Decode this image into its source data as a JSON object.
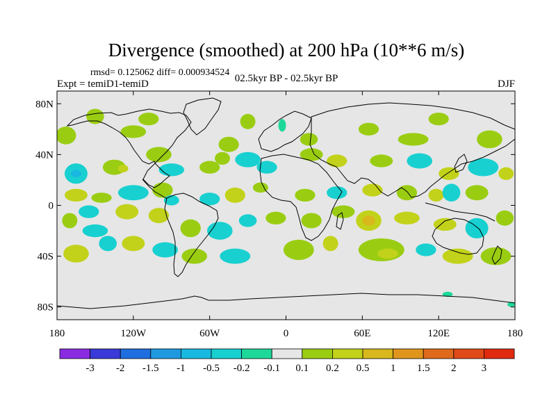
{
  "chart_data": {
    "type": "heatmap",
    "title": "Divergence (smoothed) at 200 hPa (10**6 m/s)",
    "stats_text": "rmsd= 0.125062 diff= 0.000934524",
    "left_label": "Expt = temiD1-temiD",
    "center_label": "02.5kyr BP - 02.5kyr BP",
    "right_label": "DJF",
    "x_axis": {
      "range": [
        -180,
        180
      ],
      "ticks": [
        {
          "value": -180,
          "label": "180"
        },
        {
          "value": -120,
          "label": "120W"
        },
        {
          "value": -60,
          "label": "60W"
        },
        {
          "value": 0,
          "label": "0"
        },
        {
          "value": 60,
          "label": "60E"
        },
        {
          "value": 120,
          "label": "120E"
        },
        {
          "value": 180,
          "label": "180"
        }
      ]
    },
    "y_axis": {
      "range": [
        -90,
        90
      ],
      "ticks": [
        {
          "value": 80,
          "label": "80N"
        },
        {
          "value": 40,
          "label": "40N"
        },
        {
          "value": 0,
          "label": "0"
        },
        {
          "value": -40,
          "label": "40S"
        },
        {
          "value": -80,
          "label": "80S"
        }
      ]
    },
    "colorbar": {
      "labels": [
        "-3",
        "-2",
        "-1.5",
        "-1",
        "-0.5",
        "-0.2",
        "-0.1",
        "0.1",
        "0.2",
        "0.5",
        "1",
        "1.5",
        "2",
        "3"
      ],
      "colors": [
        "#8a2be2",
        "#3a3ad8",
        "#1e6ee0",
        "#1f9ae0",
        "#19b8e0",
        "#18d0d0",
        "#1ed89a",
        "#e6e6e6",
        "#9acd12",
        "#c2d21a",
        "#d8b81c",
        "#e0951c",
        "#e06a1c",
        "#e04a18",
        "#e02a10"
      ]
    },
    "regions": [
      {
        "lon": -173,
        "lat": 55,
        "rx": 8,
        "ry": 7,
        "level": "0.1"
      },
      {
        "lon": -150,
        "lat": 70,
        "rx": 7,
        "ry": 6,
        "level": "0.1"
      },
      {
        "lon": -120,
        "lat": 58,
        "rx": 10,
        "ry": 5,
        "level": "0.1"
      },
      {
        "lon": -108,
        "lat": 68,
        "rx": 8,
        "ry": 5,
        "level": "0.1"
      },
      {
        "lon": -45,
        "lat": 48,
        "rx": 8,
        "ry": 6,
        "level": "0.1"
      },
      {
        "lon": -30,
        "lat": 66,
        "rx": 6,
        "ry": 6,
        "level": "0.1"
      },
      {
        "lon": -3,
        "lat": 63,
        "rx": 3,
        "ry": 5,
        "level": "-0.1"
      },
      {
        "lon": 18,
        "lat": 52,
        "rx": 7,
        "ry": 5,
        "level": "0.1"
      },
      {
        "lon": 65,
        "lat": 60,
        "rx": 8,
        "ry": 5,
        "level": "0.1"
      },
      {
        "lon": 100,
        "lat": 52,
        "rx": 12,
        "ry": 5,
        "level": "0.1"
      },
      {
        "lon": 120,
        "lat": 68,
        "rx": 8,
        "ry": 5,
        "level": "0.1"
      },
      {
        "lon": 160,
        "lat": 52,
        "rx": 10,
        "ry": 7,
        "level": "0.1"
      },
      {
        "lon": -165,
        "lat": 25,
        "rx": 9,
        "ry": 8,
        "level": "-0.2"
      },
      {
        "lon": -165,
        "lat": 25,
        "rx": 4,
        "ry": 3,
        "level": "-0.5"
      },
      {
        "lon": -135,
        "lat": 30,
        "rx": 9,
        "ry": 6,
        "level": "0.1"
      },
      {
        "lon": -128,
        "lat": 29,
        "rx": 4,
        "ry": 3,
        "level": "0.2"
      },
      {
        "lon": -100,
        "lat": 40,
        "rx": 10,
        "ry": 6,
        "level": "0.1"
      },
      {
        "lon": -90,
        "lat": 28,
        "rx": 10,
        "ry": 5,
        "level": "-0.2"
      },
      {
        "lon": -60,
        "lat": 30,
        "rx": 8,
        "ry": 5,
        "level": "0.1"
      },
      {
        "lon": -50,
        "lat": 37,
        "rx": 6,
        "ry": 5,
        "level": "0.1"
      },
      {
        "lon": -30,
        "lat": 36,
        "rx": 10,
        "ry": 6,
        "level": "-0.2"
      },
      {
        "lon": -15,
        "lat": 30,
        "rx": 8,
        "ry": 5,
        "level": "-0.2"
      },
      {
        "lon": 20,
        "lat": 40,
        "rx": 9,
        "ry": 5,
        "level": "0.1"
      },
      {
        "lon": 40,
        "lat": 35,
        "rx": 8,
        "ry": 5,
        "level": "0.2"
      },
      {
        "lon": 75,
        "lat": 35,
        "rx": 9,
        "ry": 5,
        "level": "0.1"
      },
      {
        "lon": 105,
        "lat": 35,
        "rx": 10,
        "ry": 6,
        "level": "-0.2"
      },
      {
        "lon": 128,
        "lat": 25,
        "rx": 8,
        "ry": 5,
        "level": "0.2"
      },
      {
        "lon": 155,
        "lat": 30,
        "rx": 12,
        "ry": 7,
        "level": "-0.2"
      },
      {
        "lon": 173,
        "lat": 25,
        "rx": 6,
        "ry": 5,
        "level": "0.2"
      },
      {
        "lon": -165,
        "lat": 8,
        "rx": 9,
        "ry": 5,
        "level": "0.2"
      },
      {
        "lon": -145,
        "lat": 6,
        "rx": 8,
        "ry": 4,
        "level": "0.1"
      },
      {
        "lon": -120,
        "lat": 10,
        "rx": 12,
        "ry": 6,
        "level": "-0.2"
      },
      {
        "lon": -97,
        "lat": 12,
        "rx": 8,
        "ry": 6,
        "level": "0.1"
      },
      {
        "lon": -90,
        "lat": 4,
        "rx": 6,
        "ry": 4,
        "level": "-0.2"
      },
      {
        "lon": -60,
        "lat": 5,
        "rx": 8,
        "ry": 5,
        "level": "-0.2"
      },
      {
        "lon": -40,
        "lat": 8,
        "rx": 8,
        "ry": 6,
        "level": "0.2"
      },
      {
        "lon": -20,
        "lat": 14,
        "rx": 6,
        "ry": 4,
        "level": "0.1"
      },
      {
        "lon": 15,
        "lat": 8,
        "rx": 8,
        "ry": 5,
        "level": "0.1"
      },
      {
        "lon": 40,
        "lat": 10,
        "rx": 8,
        "ry": 5,
        "level": "-0.2"
      },
      {
        "lon": 68,
        "lat": 12,
        "rx": 8,
        "ry": 5,
        "level": "0.2"
      },
      {
        "lon": 95,
        "lat": 10,
        "rx": 8,
        "ry": 6,
        "level": "0.1"
      },
      {
        "lon": 118,
        "lat": 8,
        "rx": 6,
        "ry": 5,
        "level": "0.2"
      },
      {
        "lon": 130,
        "lat": 10,
        "rx": 7,
        "ry": 7,
        "level": "-0.2"
      },
      {
        "lon": 150,
        "lat": 10,
        "rx": 9,
        "ry": 6,
        "level": "0.1"
      },
      {
        "lon": -170,
        "lat": -12,
        "rx": 6,
        "ry": 6,
        "level": "0.1"
      },
      {
        "lon": -155,
        "lat": -5,
        "rx": 8,
        "ry": 5,
        "level": "-0.2"
      },
      {
        "lon": -150,
        "lat": -20,
        "rx": 10,
        "ry": 5,
        "level": "-0.2"
      },
      {
        "lon": -125,
        "lat": -5,
        "rx": 9,
        "ry": 6,
        "level": "0.2"
      },
      {
        "lon": -100,
        "lat": -8,
        "rx": 8,
        "ry": 6,
        "level": "0.2"
      },
      {
        "lon": -75,
        "lat": -18,
        "rx": 8,
        "ry": 7,
        "level": "0.1"
      },
      {
        "lon": -52,
        "lat": -20,
        "rx": 10,
        "ry": 7,
        "level": "-0.2"
      },
      {
        "lon": -30,
        "lat": -12,
        "rx": 7,
        "ry": 5,
        "level": "-0.2"
      },
      {
        "lon": -8,
        "lat": -10,
        "rx": 8,
        "ry": 5,
        "level": "0.1"
      },
      {
        "lon": 20,
        "lat": -12,
        "rx": 8,
        "ry": 6,
        "level": "0.1"
      },
      {
        "lon": 45,
        "lat": -5,
        "rx": 9,
        "ry": 5,
        "level": "0.1"
      },
      {
        "lon": 65,
        "lat": -12,
        "rx": 10,
        "ry": 8,
        "level": "0.2"
      },
      {
        "lon": 65,
        "lat": -12,
        "rx": 5,
        "ry": 4,
        "level": "0.5"
      },
      {
        "lon": 95,
        "lat": -10,
        "rx": 10,
        "ry": 5,
        "level": "0.2"
      },
      {
        "lon": 125,
        "lat": -15,
        "rx": 9,
        "ry": 5,
        "level": "0.2"
      },
      {
        "lon": 150,
        "lat": -18,
        "rx": 9,
        "ry": 8,
        "level": "-0.2"
      },
      {
        "lon": 172,
        "lat": -10,
        "rx": 7,
        "ry": 6,
        "level": "0.1"
      },
      {
        "lon": -165,
        "lat": -38,
        "rx": 10,
        "ry": 7,
        "level": "0.2"
      },
      {
        "lon": -140,
        "lat": -30,
        "rx": 7,
        "ry": 6,
        "level": "-0.2"
      },
      {
        "lon": -120,
        "lat": -30,
        "rx": 9,
        "ry": 6,
        "level": "0.2"
      },
      {
        "lon": -95,
        "lat": -35,
        "rx": 10,
        "ry": 6,
        "level": "-0.2"
      },
      {
        "lon": -72,
        "lat": -40,
        "rx": 10,
        "ry": 6,
        "level": "0.1"
      },
      {
        "lon": -40,
        "lat": -40,
        "rx": 12,
        "ry": 6,
        "level": "-0.2"
      },
      {
        "lon": 10,
        "lat": -35,
        "rx": 12,
        "ry": 8,
        "level": "0.1"
      },
      {
        "lon": 35,
        "lat": -30,
        "rx": 6,
        "ry": 6,
        "level": "0.2"
      },
      {
        "lon": 75,
        "lat": -35,
        "rx": 18,
        "ry": 9,
        "level": "0.1"
      },
      {
        "lon": 80,
        "lat": -38,
        "rx": 8,
        "ry": 4,
        "level": "0.2"
      },
      {
        "lon": 110,
        "lat": -35,
        "rx": 8,
        "ry": 5,
        "level": "-0.2"
      },
      {
        "lon": 135,
        "lat": -40,
        "rx": 12,
        "ry": 6,
        "level": "0.2"
      },
      {
        "lon": 165,
        "lat": -40,
        "rx": 12,
        "ry": 7,
        "level": "0.1"
      },
      {
        "lon": 127,
        "lat": -70,
        "rx": 4,
        "ry": 2,
        "level": "-0.1"
      },
      {
        "lon": 177,
        "lat": -78,
        "rx": 3,
        "ry": 2,
        "level": "-0.1"
      }
    ]
  }
}
